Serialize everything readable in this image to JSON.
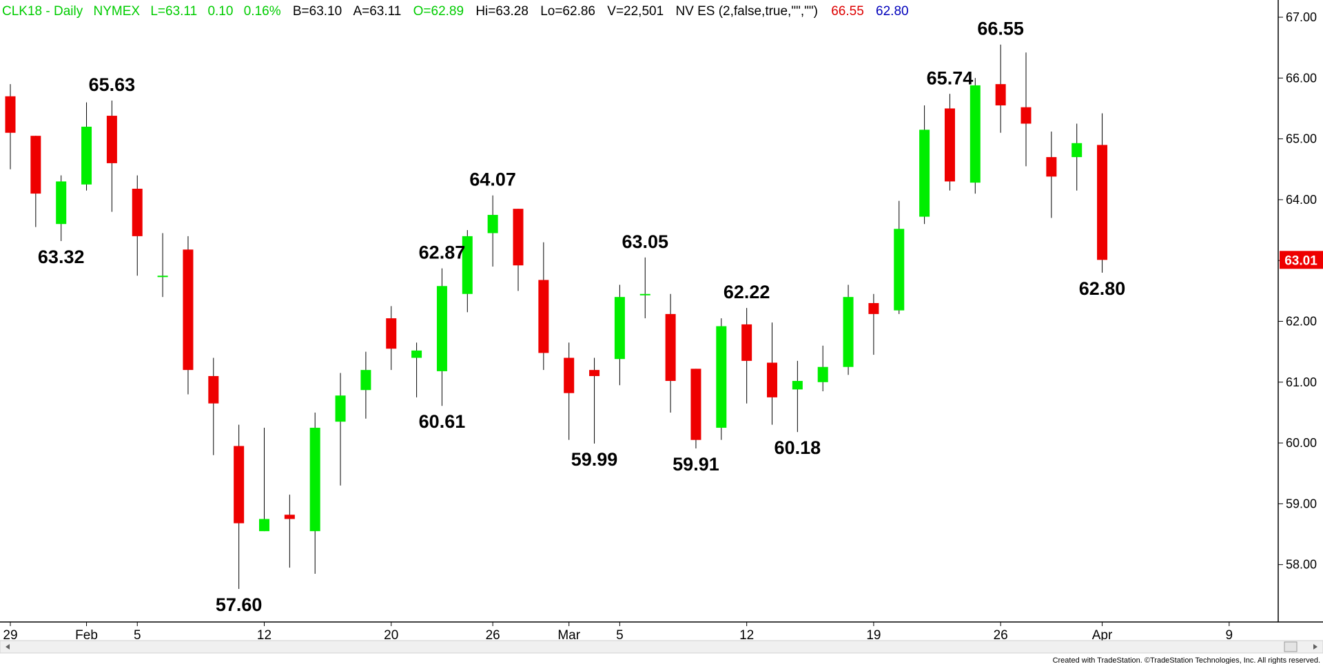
{
  "header": {
    "symbol": "CLK18 - Daily",
    "exchange": "NYMEX",
    "last": "L=63.11",
    "change": "0.10",
    "change_pct": "0.16%",
    "bid": "B=63.10",
    "ask": "A=63.11",
    "open": "O=62.89",
    "high": "Hi=63.28",
    "low": "Lo=62.86",
    "volume": "V=22,501",
    "indicator": "NV ES (2,false,true,\"\",\"\")",
    "ind_value_1": "66.55",
    "ind_value_2": "62.80"
  },
  "colors": {
    "up": "#00ee00",
    "down": "#ee0000",
    "header_green": "#00cc00",
    "header_black": "#000000",
    "header_red": "#dd0000",
    "header_blue": "#0000bb",
    "last_price_box": "#ee0000"
  },
  "footer": {
    "credit": "Created with TradeStation. ©TradeStation Technologies, Inc. All rights reserved."
  },
  "chart_data": {
    "type": "candlestick",
    "price_range": [
      57.2,
      67.2
    ],
    "last_price_label": "63.01",
    "last_price": 63.01,
    "y_ticks": [
      {
        "value": 58,
        "label": "58.00"
      },
      {
        "value": 59,
        "label": "59.00"
      },
      {
        "value": 60,
        "label": "60.00"
      },
      {
        "value": 61,
        "label": "61.00"
      },
      {
        "value": 62,
        "label": "62.00"
      },
      {
        "value": 63,
        "label": "63.00"
      },
      {
        "value": 64,
        "label": "64.00"
      },
      {
        "value": 65,
        "label": "65.00"
      },
      {
        "value": 66,
        "label": "66.00"
      },
      {
        "value": 67,
        "label": "67.00"
      }
    ],
    "x_ticks": [
      {
        "slot": 0,
        "label": "29"
      },
      {
        "slot": 3,
        "label": "Feb"
      },
      {
        "slot": 5,
        "label": "5"
      },
      {
        "slot": 10,
        "label": "12"
      },
      {
        "slot": 15,
        "label": "20"
      },
      {
        "slot": 19,
        "label": "26"
      },
      {
        "slot": 22,
        "label": "Mar"
      },
      {
        "slot": 24,
        "label": "5"
      },
      {
        "slot": 29,
        "label": "12"
      },
      {
        "slot": 34,
        "label": "19"
      },
      {
        "slot": 39,
        "label": "26"
      },
      {
        "slot": 43,
        "label": "Apr"
      },
      {
        "slot": 48,
        "label": "9"
      }
    ],
    "candles": [
      {
        "slot": 0,
        "o": 65.7,
        "h": 65.9,
        "l": 64.5,
        "c": 65.1
      },
      {
        "slot": 1,
        "o": 65.05,
        "h": 65.05,
        "l": 63.55,
        "c": 64.1
      },
      {
        "slot": 2,
        "o": 63.6,
        "h": 64.4,
        "l": 63.32,
        "c": 64.3
      },
      {
        "slot": 3,
        "o": 64.25,
        "h": 65.6,
        "l": 64.15,
        "c": 65.2
      },
      {
        "slot": 4,
        "o": 65.38,
        "h": 65.63,
        "l": 63.8,
        "c": 64.6
      },
      {
        "slot": 5,
        "o": 64.18,
        "h": 64.4,
        "l": 62.75,
        "c": 63.4
      },
      {
        "slot": 6,
        "o": 62.75,
        "h": 63.45,
        "l": 62.4,
        "c": 62.75
      },
      {
        "slot": 7,
        "o": 63.18,
        "h": 63.4,
        "l": 60.8,
        "c": 61.2
      },
      {
        "slot": 8,
        "o": 61.1,
        "h": 61.4,
        "l": 59.8,
        "c": 60.65
      },
      {
        "slot": 9,
        "o": 59.95,
        "h": 60.3,
        "l": 57.6,
        "c": 58.68
      },
      {
        "slot": 10,
        "o": 58.55,
        "h": 60.25,
        "l": 58.55,
        "c": 58.75
      },
      {
        "slot": 11,
        "o": 58.82,
        "h": 59.15,
        "l": 57.95,
        "c": 58.75
      },
      {
        "slot": 12,
        "o": 58.55,
        "h": 60.5,
        "l": 57.85,
        "c": 60.25
      },
      {
        "slot": 13,
        "o": 60.35,
        "h": 61.15,
        "l": 59.3,
        "c": 60.78
      },
      {
        "slot": 14,
        "o": 60.87,
        "h": 61.5,
        "l": 60.4,
        "c": 61.2
      },
      {
        "slot": 15,
        "o": 62.05,
        "h": 62.25,
        "l": 61.2,
        "c": 61.55
      },
      {
        "slot": 16,
        "o": 61.4,
        "h": 61.65,
        "l": 60.75,
        "c": 61.52
      },
      {
        "slot": 17,
        "o": 61.18,
        "h": 62.87,
        "l": 60.61,
        "c": 62.58
      },
      {
        "slot": 18,
        "o": 62.45,
        "h": 63.5,
        "l": 62.15,
        "c": 63.4
      },
      {
        "slot": 19,
        "o": 63.45,
        "h": 64.07,
        "l": 62.9,
        "c": 63.75
      },
      {
        "slot": 20,
        "o": 63.85,
        "h": 63.85,
        "l": 62.5,
        "c": 62.92
      },
      {
        "slot": 21,
        "o": 62.68,
        "h": 63.3,
        "l": 61.2,
        "c": 61.48
      },
      {
        "slot": 22,
        "o": 61.4,
        "h": 61.65,
        "l": 60.05,
        "c": 60.82
      },
      {
        "slot": 23,
        "o": 61.2,
        "h": 61.4,
        "l": 59.99,
        "c": 61.1
      },
      {
        "slot": 24,
        "o": 61.38,
        "h": 62.6,
        "l": 60.95,
        "c": 62.4
      },
      {
        "slot": 25,
        "o": 62.45,
        "h": 63.05,
        "l": 62.05,
        "c": 62.45
      },
      {
        "slot": 26,
        "o": 62.12,
        "h": 62.45,
        "l": 60.5,
        "c": 61.02
      },
      {
        "slot": 27,
        "o": 61.22,
        "h": 61.22,
        "l": 59.91,
        "c": 60.05
      },
      {
        "slot": 28,
        "o": 60.25,
        "h": 62.05,
        "l": 60.05,
        "c": 61.92
      },
      {
        "slot": 29,
        "o": 61.95,
        "h": 62.22,
        "l": 60.65,
        "c": 61.35
      },
      {
        "slot": 30,
        "o": 61.32,
        "h": 61.98,
        "l": 60.3,
        "c": 60.75
      },
      {
        "slot": 31,
        "o": 60.88,
        "h": 61.35,
        "l": 60.18,
        "c": 61.02
      },
      {
        "slot": 32,
        "o": 61.0,
        "h": 61.6,
        "l": 60.85,
        "c": 61.25
      },
      {
        "slot": 33,
        "o": 61.25,
        "h": 62.6,
        "l": 61.12,
        "c": 62.4
      },
      {
        "slot": 34,
        "o": 62.3,
        "h": 62.45,
        "l": 61.45,
        "c": 62.12
      },
      {
        "slot": 35,
        "o": 62.18,
        "h": 63.98,
        "l": 62.12,
        "c": 63.52
      },
      {
        "slot": 36,
        "o": 63.72,
        "h": 65.55,
        "l": 63.6,
        "c": 65.15
      },
      {
        "slot": 37,
        "o": 65.5,
        "h": 65.74,
        "l": 64.15,
        "c": 64.3
      },
      {
        "slot": 38,
        "o": 64.28,
        "h": 66.0,
        "l": 64.1,
        "c": 65.88
      },
      {
        "slot": 39,
        "o": 65.9,
        "h": 66.55,
        "l": 65.1,
        "c": 65.55
      },
      {
        "slot": 40,
        "o": 65.52,
        "h": 66.42,
        "l": 64.55,
        "c": 65.25
      },
      {
        "slot": 41,
        "o": 64.7,
        "h": 65.12,
        "l": 63.7,
        "c": 64.38
      },
      {
        "slot": 42,
        "o": 64.7,
        "h": 65.25,
        "l": 64.15,
        "c": 64.93
      },
      {
        "slot": 43,
        "o": 64.9,
        "h": 65.42,
        "l": 62.8,
        "c": 63.01
      }
    ],
    "annotations": [
      {
        "slot": 2,
        "text": "63.32",
        "pos": "below",
        "value": 63.32
      },
      {
        "slot": 4,
        "text": "65.63",
        "pos": "above",
        "value": 65.63
      },
      {
        "slot": 9,
        "text": "57.60",
        "pos": "below",
        "value": 57.6
      },
      {
        "slot": 17,
        "text": "62.87",
        "pos": "above",
        "value": 62.87
      },
      {
        "slot": 17,
        "text": "60.61",
        "pos": "below",
        "value": 60.61
      },
      {
        "slot": 19,
        "text": "64.07",
        "pos": "above",
        "value": 64.07
      },
      {
        "slot": 23,
        "text": "59.99",
        "pos": "below",
        "value": 59.99
      },
      {
        "slot": 25,
        "text": "63.05",
        "pos": "above",
        "value": 63.05
      },
      {
        "slot": 27,
        "text": "59.91",
        "pos": "below",
        "value": 59.91
      },
      {
        "slot": 29,
        "text": "62.22",
        "pos": "above",
        "value": 62.22
      },
      {
        "slot": 31,
        "text": "60.18",
        "pos": "below",
        "value": 60.18
      },
      {
        "slot": 37,
        "text": "65.74",
        "pos": "above",
        "value": 65.74
      },
      {
        "slot": 39,
        "text": "66.55",
        "pos": "above",
        "value": 66.55
      },
      {
        "slot": 43,
        "text": "62.80",
        "pos": "below",
        "value": 62.8
      }
    ]
  }
}
